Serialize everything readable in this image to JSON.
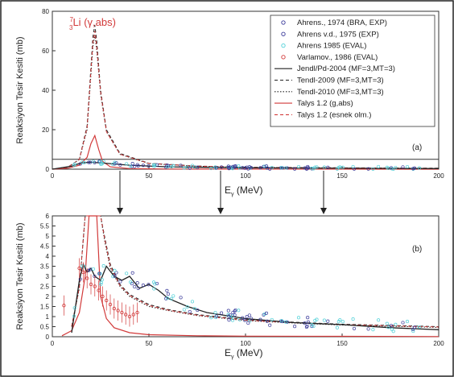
{
  "figure": {
    "panel_a_label": "(a)",
    "panel_b_label": "(b)",
    "xlabel_main": "E",
    "xlabel_sub": "γ",
    "xlabel_unit": " (MeV)",
    "ylabel": "Reaksiyon Tesir Kesiti (mb)",
    "annotation": {
      "sup": "7",
      "sub": "3",
      "element": "Li",
      "reaction": " (γ,abs)"
    },
    "colors": {
      "black": "#222222",
      "red": "#d23a3a",
      "blue": "#3a3a9a",
      "cyan": "#4fd0d8",
      "grey": "#555555"
    }
  },
  "legend": [
    {
      "label": "Ahrens., 1974 (BRA, EXP)",
      "kind": "marker",
      "color": "#3a3a9a"
    },
    {
      "label": "Ahrens v.d., 1975 (EXP)",
      "kind": "marker",
      "color": "#3a3a9a"
    },
    {
      "label": "Ahrens 1985 (EVAL)",
      "kind": "marker",
      "color": "#4fd0d8"
    },
    {
      "label": "Varlamov., 1986 (EVAL)",
      "kind": "marker",
      "color": "#d23a3a"
    },
    {
      "label": "Jendl/Pd-2004 (MF=3,MT=3)",
      "kind": "solid",
      "color": "#222222"
    },
    {
      "label": "Tendl-2009 (MF=3,MT=3)",
      "kind": "dash",
      "color": "#222222"
    },
    {
      "label": "Tendl-2010 (MF=3,MT=3)",
      "kind": "dot",
      "color": "#222222"
    },
    {
      "label": "Talys 1.2 (g,abs)",
      "kind": "solid",
      "color": "#d23a3a"
    },
    {
      "label": "Talys 1.2 (esnek olm.)",
      "kind": "dash",
      "color": "#d23a3a"
    }
  ],
  "chart_data": [
    {
      "type": "line",
      "panel": "a",
      "xlabel": "E_γ (MeV)",
      "ylabel": "Reaksiyon Tesir Kesiti (mb)",
      "xlim": [
        0,
        200
      ],
      "ylim": [
        0,
        80
      ],
      "xticks": [
        0,
        50,
        100,
        150,
        200
      ],
      "yticks": [
        0,
        20,
        40,
        60,
        80
      ],
      "reference_hlines": [
        0,
        5
      ],
      "series": [
        {
          "name": "Tendl-2009 (MF=3,MT=3)",
          "x": [
            0,
            8,
            14,
            18,
            20,
            21,
            22,
            23,
            25,
            28,
            35,
            50,
            75,
            100,
            150,
            200
          ],
          "y": [
            0,
            1,
            5,
            22,
            52,
            67,
            73,
            65,
            40,
            20,
            8,
            3,
            1.6,
            1.0,
            0.7,
            0.5
          ]
        },
        {
          "name": "Tendl-2010 (MF=3,MT=3)",
          "x": [
            0,
            8,
            14,
            18,
            20,
            21,
            22,
            23,
            25,
            28,
            35,
            50,
            75,
            100,
            150,
            200
          ],
          "y": [
            0,
            1,
            5,
            20,
            48,
            62,
            68,
            60,
            38,
            19,
            7.5,
            2.8,
            1.5,
            0.9,
            0.6,
            0.4
          ]
        },
        {
          "name": "Talys 1.2 (esnek olm.)",
          "x": [
            0,
            8,
            14,
            18,
            20,
            21,
            22,
            23,
            25,
            28,
            35,
            50,
            75,
            100,
            150,
            200
          ],
          "y": [
            0,
            1,
            5,
            21,
            50,
            64,
            70,
            62,
            39,
            19,
            7.6,
            2.9,
            1.5,
            0.9,
            0.6,
            0.4
          ]
        },
        {
          "name": "Talys 1.2 (g,abs)",
          "x": [
            0,
            8,
            14,
            18,
            20,
            22,
            24,
            26,
            30,
            40,
            60,
            100,
            200
          ],
          "y": [
            0,
            0.5,
            2,
            6,
            13,
            17,
            10,
            4,
            1.2,
            0.3,
            0.1,
            0.05,
            0
          ]
        },
        {
          "name": "Jendl/Pd-2004 (MF=3,MT=3)",
          "x": [
            0,
            10,
            15,
            20,
            30,
            40,
            60,
            100,
            200
          ],
          "y": [
            0,
            1.5,
            3.2,
            3.5,
            2.8,
            2.0,
            1.2,
            0.7,
            0.3
          ]
        }
      ]
    },
    {
      "type": "line",
      "panel": "b",
      "xlabel": "E_γ (MeV)",
      "ylabel": "Reaksiyon Tesir Kesiti (mb)",
      "xlim": [
        0,
        200
      ],
      "ylim": [
        0,
        6
      ],
      "xticks": [
        0,
        50,
        100,
        150,
        200
      ],
      "yticks": [
        0,
        0.5,
        1,
        1.5,
        2,
        2.5,
        3,
        3.5,
        4,
        4.5,
        5,
        5.5,
        6
      ],
      "series": [
        {
          "name": "Tendl-2009 (MF=3,MT=3)",
          "x": [
            10,
            14,
            17,
            25,
            27,
            30,
            35,
            40,
            50,
            60,
            75,
            100,
            125,
            150,
            175,
            200
          ],
          "y": [
            0.5,
            2.5,
            6,
            6,
            5,
            3.6,
            2.6,
            2.1,
            1.6,
            1.35,
            1.1,
            0.85,
            0.72,
            0.62,
            0.56,
            0.5
          ]
        },
        {
          "name": "Tendl-2010 (MF=3,MT=3)",
          "x": [
            10,
            14,
            17,
            25,
            27,
            30,
            35,
            40,
            50,
            60,
            75,
            100,
            125,
            150,
            175,
            200
          ],
          "y": [
            0.5,
            2.4,
            6,
            6,
            4.8,
            3.4,
            2.5,
            2.0,
            1.5,
            1.3,
            1.05,
            0.8,
            0.68,
            0.58,
            0.52,
            0.46
          ]
        },
        {
          "name": "Talys 1.2 (esnek olm.)",
          "x": [
            10,
            14,
            17,
            25,
            27,
            30,
            35,
            40,
            50,
            60,
            75,
            100,
            125,
            150,
            175,
            200
          ],
          "y": [
            0.5,
            2.45,
            6,
            6,
            4.9,
            3.5,
            2.55,
            2.05,
            1.55,
            1.32,
            1.07,
            0.82,
            0.7,
            0.6,
            0.54,
            0.48
          ]
        },
        {
          "name": "Talys 1.2 (g,abs)",
          "x": [
            5,
            10,
            14,
            17,
            19,
            21,
            23,
            25,
            28,
            32,
            40,
            50,
            75,
            100,
            150,
            200
          ],
          "y": [
            0.05,
            0.3,
            1.2,
            3.0,
            6.0,
            6.0,
            6.0,
            2.0,
            0.9,
            0.45,
            0.2,
            0.1,
            0.05,
            0.03,
            0.02,
            0.01
          ]
        },
        {
          "name": "Jendl/Pd-2004 (MF=3,MT=3)",
          "x": [
            10,
            12,
            14,
            16,
            18,
            20,
            22,
            25,
            28,
            32,
            36,
            40,
            45,
            50,
            55,
            60,
            70,
            80,
            100,
            125,
            150,
            175,
            200
          ],
          "y": [
            0.2,
            1.5,
            2.8,
            3.6,
            3.2,
            3.4,
            3.0,
            2.8,
            3.5,
            3.0,
            2.8,
            3.0,
            2.4,
            2.6,
            2.3,
            1.9,
            1.5,
            1.2,
            0.9,
            0.7,
            0.6,
            0.45,
            0.35
          ]
        }
      ]
    }
  ]
}
